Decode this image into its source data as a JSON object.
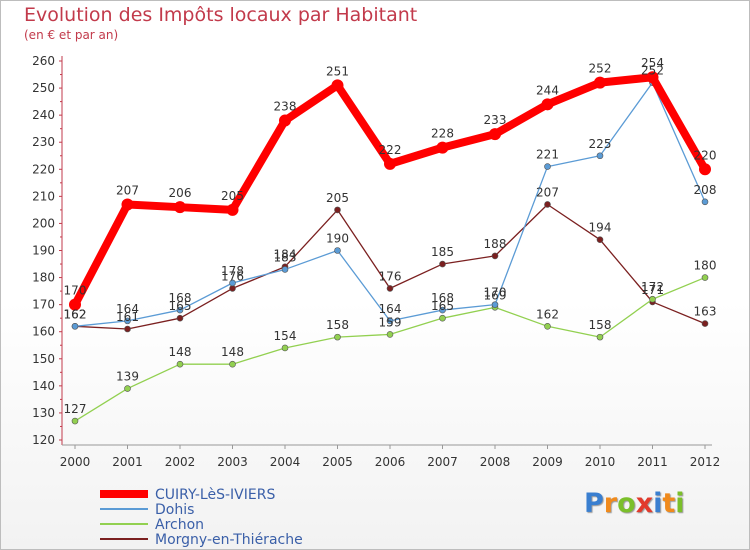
{
  "title": "Evolution des Impôts locaux par Habitant",
  "subtitle": "(en € et par an)",
  "logo": {
    "text": "Proxiti",
    "colors": [
      "#3a7fd0",
      "#f08a1c",
      "#7bbf2a",
      "#e23a2c",
      "#3a7fd0",
      "#f08a1c",
      "#7bbf2a"
    ]
  },
  "chart_data": {
    "type": "line",
    "title": "Evolution des Impôts locaux par Habitant",
    "subtitle": "(en € et par an)",
    "x": [
      "2000",
      "2001",
      "2002",
      "2003",
      "2004",
      "2005",
      "2006",
      "2007",
      "2008",
      "2009",
      "2010",
      "2011",
      "2012"
    ],
    "ylim": [
      120,
      260
    ],
    "yticks": [
      120,
      130,
      140,
      150,
      160,
      170,
      180,
      190,
      200,
      210,
      220,
      230,
      240,
      250,
      260
    ],
    "grid": false,
    "legend": "bottom-left",
    "series": [
      {
        "name": "CUIRY-LèS-IVIERS",
        "color": "#ff0000",
        "values": [
          170,
          207,
          206,
          205,
          238,
          251,
          222,
          228,
          233,
          244,
          252,
          254,
          220
        ]
      },
      {
        "name": "Dohis",
        "color": "#5b9bd5",
        "values": [
          162,
          164,
          168,
          178,
          183,
          190,
          164,
          168,
          170,
          221,
          225,
          252,
          208
        ]
      },
      {
        "name": "Archon",
        "color": "#92d050",
        "values": [
          127,
          139,
          148,
          148,
          154,
          158,
          159,
          165,
          169,
          162,
          158,
          172,
          180
        ]
      },
      {
        "name": "Morgny-en-Thiérache",
        "color": "#7b2020",
        "values": [
          162,
          161,
          165,
          176,
          184,
          205,
          176,
          185,
          188,
          207,
          194,
          171,
          163
        ]
      }
    ]
  }
}
